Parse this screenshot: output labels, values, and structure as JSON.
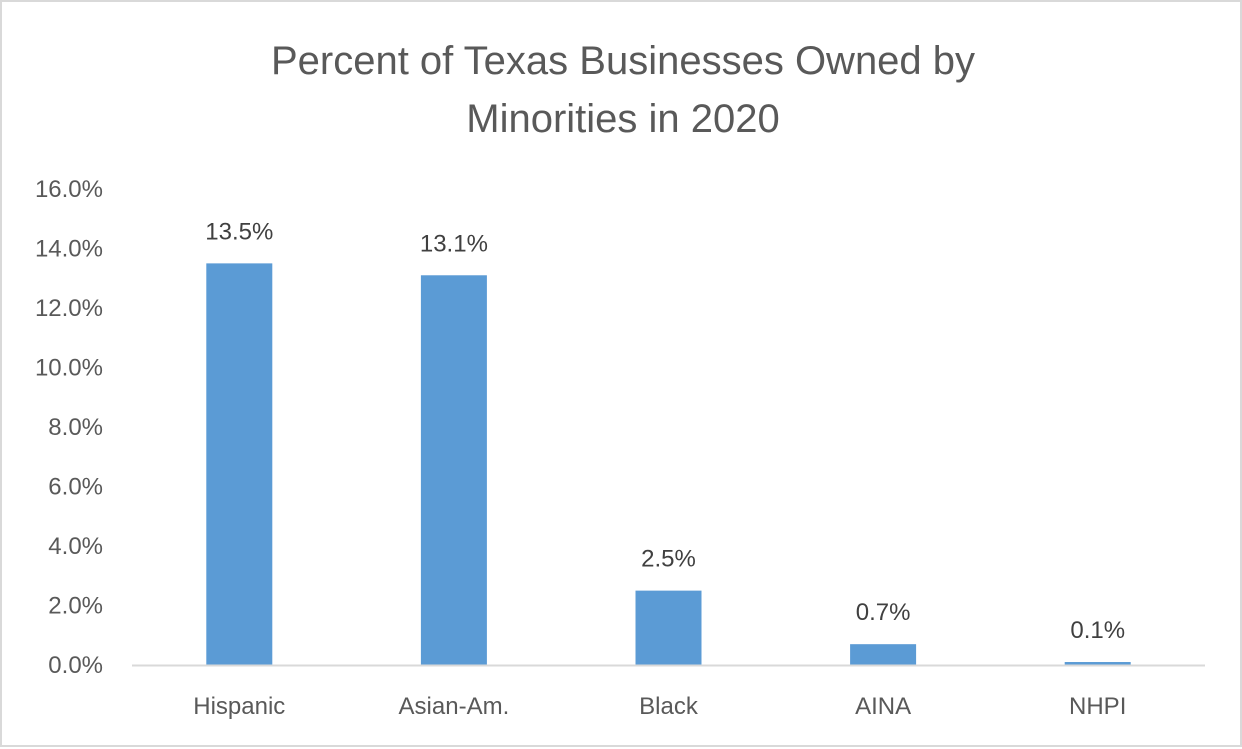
{
  "chart_data": {
    "type": "bar",
    "title_lines": [
      "Percent of Texas Businesses Owned by",
      "Minorities in 2020"
    ],
    "categories": [
      "Hispanic",
      "Asian-Am.",
      "Black",
      "AINA",
      "NHPI"
    ],
    "values": [
      13.5,
      13.1,
      2.5,
      0.7,
      0.1
    ],
    "data_labels": [
      "13.5%",
      "13.1%",
      "2.5%",
      "0.7%",
      "0.1%"
    ],
    "y_ticks": [
      0,
      2,
      4,
      6,
      8,
      10,
      12,
      14,
      16
    ],
    "y_tick_labels": [
      "0.0%",
      "2.0%",
      "4.0%",
      "6.0%",
      "8.0%",
      "10.0%",
      "12.0%",
      "14.0%",
      "16.0%"
    ],
    "ylim": [
      0,
      16
    ],
    "grid": false,
    "legend": "none",
    "bar_color": "#5b9bd5",
    "axis_color": "#d9d9d9"
  }
}
